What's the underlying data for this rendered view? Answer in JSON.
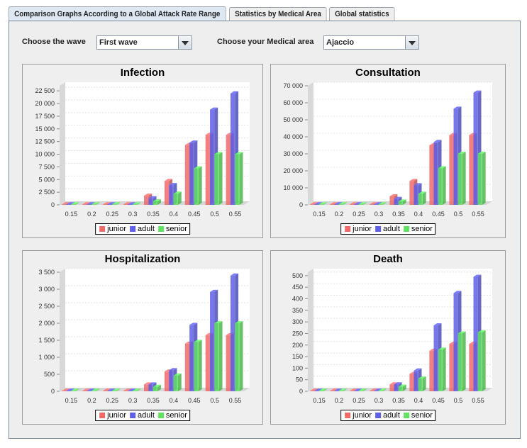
{
  "tabs": [
    {
      "label": "Comparison Graphs According to a Global Attack Rate Range",
      "active": true
    },
    {
      "label": "Statistics by Medical Area",
      "active": false
    },
    {
      "label": "Global statistics",
      "active": false
    }
  ],
  "controls": {
    "wave_label": "Choose the wave",
    "wave_value": "First wave",
    "area_label": "Choose your Medical area",
    "area_value": "Ajaccio"
  },
  "colors": {
    "junior": "#f06a6a",
    "adult": "#5f5fe8",
    "senior": "#5fe35f"
  },
  "chart_data": [
    {
      "type": "bar",
      "title": "Infection",
      "categories": [
        "0.15",
        "0.2",
        "0.25",
        "0.3",
        "0.35",
        "0.4",
        "0.45",
        "0.5",
        "0.55"
      ],
      "yticks": [
        "0",
        "2 500",
        "5 000",
        "7 500",
        "10 000",
        "12 500",
        "15 000",
        "17 500",
        "20 000",
        "22 500"
      ],
      "ytick_values": [
        0,
        2500,
        5000,
        7500,
        10000,
        12500,
        15000,
        17500,
        20000,
        22500
      ],
      "ylim": [
        0,
        23500
      ],
      "series": [
        {
          "name": "junior",
          "values": [
            0,
            0,
            0,
            0,
            1800,
            4700,
            11800,
            13800,
            13800
          ]
        },
        {
          "name": "adult",
          "values": [
            0,
            0,
            0,
            0,
            1300,
            3900,
            12300,
            18800,
            22000
          ]
        },
        {
          "name": "senior",
          "values": [
            0,
            0,
            0,
            0,
            700,
            2200,
            7200,
            10000,
            10000
          ]
        }
      ],
      "legend": "bottom"
    },
    {
      "type": "bar",
      "title": "Consultation",
      "categories": [
        "0.15",
        "0.2",
        "0.25",
        "0.3",
        "0.35",
        "0.4",
        "0.45",
        "0.5",
        "0.55"
      ],
      "yticks": [
        "0",
        "10 000",
        "20 000",
        "30 000",
        "40 000",
        "50 000",
        "60 000",
        "70 000"
      ],
      "ytick_values": [
        0,
        10000,
        20000,
        30000,
        40000,
        50000,
        60000,
        70000
      ],
      "ylim": [
        0,
        70000
      ],
      "series": [
        {
          "name": "junior",
          "values": [
            0,
            0,
            0,
            0,
            5000,
            14000,
            35000,
            41000,
            41000
          ]
        },
        {
          "name": "adult",
          "values": [
            0,
            0,
            0,
            0,
            3500,
            11500,
            37000,
            56500,
            66000
          ]
        },
        {
          "name": "senior",
          "values": [
            0,
            0,
            0,
            0,
            2000,
            6500,
            21500,
            30000,
            30000
          ]
        }
      ],
      "legend": "bottom"
    },
    {
      "type": "bar",
      "title": "Hospitalization",
      "categories": [
        "0.15",
        "0.2",
        "0.25",
        "0.3",
        "0.35",
        "0.4",
        "0.45",
        "0.5",
        "0.55"
      ],
      "yticks": [
        "0",
        "500",
        "1 000",
        "1 500",
        "2 000",
        "2 500",
        "3 000",
        "3 500"
      ],
      "ytick_values": [
        0,
        500,
        1000,
        1500,
        2000,
        2500,
        3000,
        3500
      ],
      "ylim": [
        0,
        3500
      ],
      "series": [
        {
          "name": "junior",
          "values": [
            0,
            0,
            0,
            0,
            200,
            580,
            1400,
            1650,
            1650
          ]
        },
        {
          "name": "adult",
          "values": [
            0,
            0,
            0,
            0,
            200,
            620,
            1950,
            2920,
            3400
          ]
        },
        {
          "name": "senior",
          "values": [
            0,
            0,
            0,
            0,
            130,
            460,
            1450,
            2000,
            2000
          ]
        }
      ],
      "legend": "bottom"
    },
    {
      "type": "bar",
      "title": "Death",
      "categories": [
        "0.15",
        "0.2",
        "0.25",
        "0.3",
        "0.35",
        "0.4",
        "0.45",
        "0.5",
        "0.55"
      ],
      "yticks": [
        "0",
        "50",
        "100",
        "150",
        "200",
        "250",
        "300",
        "350",
        "400",
        "450",
        "500"
      ],
      "ytick_values": [
        0,
        50,
        100,
        150,
        200,
        250,
        300,
        350,
        400,
        450,
        500
      ],
      "ylim": [
        0,
        515
      ],
      "series": [
        {
          "name": "junior",
          "values": [
            0,
            0,
            0,
            0,
            30,
            75,
            175,
            205,
            205
          ]
        },
        {
          "name": "adult",
          "values": [
            0,
            0,
            0,
            0,
            30,
            90,
            285,
            425,
            495
          ]
        },
        {
          "name": "senior",
          "values": [
            0,
            0,
            0,
            0,
            20,
            55,
            180,
            250,
            255
          ]
        }
      ],
      "legend": "bottom"
    }
  ]
}
